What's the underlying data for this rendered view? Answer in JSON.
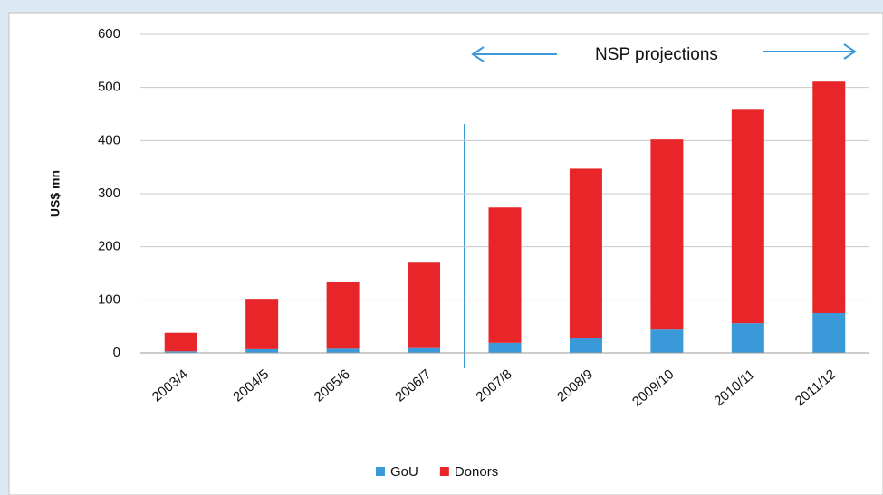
{
  "chart_data": {
    "type": "stacked_bar",
    "y_label": "US$ mn",
    "annotation": "NSP projections",
    "categories": [
      "2003/4",
      "2004/5",
      "2005/6",
      "2006/7",
      "2007/8",
      "2008/9",
      "2009/10",
      "2010/11",
      "2011/12"
    ],
    "series": [
      {
        "name": "GoU",
        "color": "#3a9ad9",
        "values": [
          3,
          7,
          8,
          9,
          19,
          29,
          44,
          56,
          75
        ]
      },
      {
        "name": "Donors",
        "color": "#e8262a",
        "values": [
          35,
          95,
          125,
          161,
          255,
          318,
          358,
          402,
          436
        ]
      }
    ],
    "ylim": [
      0,
      600
    ],
    "yticks": [
      0,
      100,
      200,
      300,
      400,
      500,
      600
    ],
    "grid": true,
    "legend": "bottom"
  }
}
